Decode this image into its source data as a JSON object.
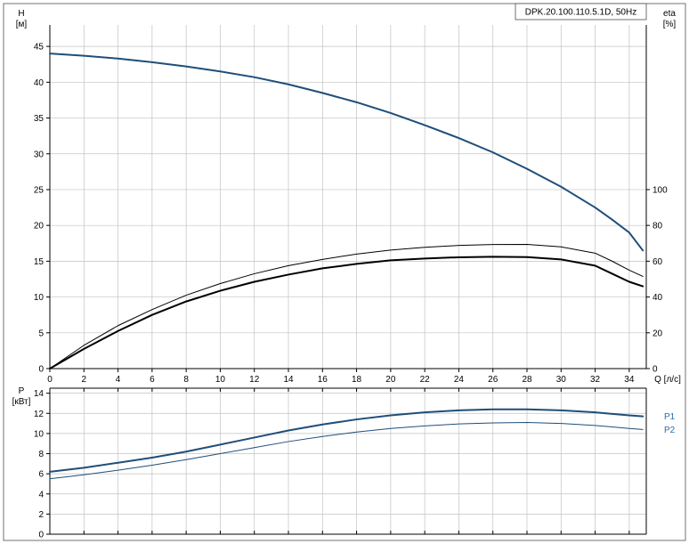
{
  "title_box_text": "DPK.20.100.110.5.1D, 50Hz",
  "title_fontsize": 10,
  "background_color": "#ffffff",
  "border_color": "#4f4f4f",
  "grid_color": "#c2c2c2",
  "axis_color": "#000000",
  "tick_fontsize": 10,
  "x_axis": {
    "label": "Q [л/с]",
    "min": 0,
    "max": 35,
    "ticks": [
      0,
      2,
      4,
      6,
      8,
      10,
      12,
      14,
      16,
      18,
      20,
      22,
      24,
      26,
      28,
      30,
      32,
      34
    ]
  },
  "top_chart": {
    "left_axis": {
      "label_line1": "H",
      "label_line2": "[м]",
      "min": 0,
      "max": 48,
      "ticks": [
        0,
        5,
        10,
        15,
        20,
        25,
        30,
        35,
        40,
        45
      ]
    },
    "right_axis": {
      "label_line1": "eta",
      "label_line2": "[%]",
      "min": 0,
      "max": 192,
      "ticks": [
        0,
        20,
        40,
        60,
        80,
        100
      ]
    },
    "series": [
      {
        "name": "head-curve",
        "axis": "left",
        "color": "#1f4e79",
        "width": 2,
        "points": [
          [
            0,
            44
          ],
          [
            2,
            43.7
          ],
          [
            4,
            43.3
          ],
          [
            6,
            42.8
          ],
          [
            8,
            42.2
          ],
          [
            10,
            41.5
          ],
          [
            12,
            40.7
          ],
          [
            14,
            39.7
          ],
          [
            16,
            38.5
          ],
          [
            18,
            37.2
          ],
          [
            20,
            35.7
          ],
          [
            22,
            34.0
          ],
          [
            24,
            32.2
          ],
          [
            26,
            30.2
          ],
          [
            28,
            27.9
          ],
          [
            30,
            25.4
          ],
          [
            32,
            22.5
          ],
          [
            33,
            20.8
          ],
          [
            34,
            19.0
          ],
          [
            34.8,
            16.5
          ]
        ]
      },
      {
        "name": "eta-upper",
        "axis": "right",
        "color": "#000000",
        "width": 1,
        "points": [
          [
            0,
            0
          ],
          [
            2,
            13
          ],
          [
            4,
            24
          ],
          [
            6,
            33
          ],
          [
            8,
            41
          ],
          [
            10,
            47.5
          ],
          [
            12,
            53
          ],
          [
            14,
            57.5
          ],
          [
            16,
            61
          ],
          [
            18,
            64
          ],
          [
            20,
            66.2
          ],
          [
            22,
            67.8
          ],
          [
            24,
            68.8
          ],
          [
            26,
            69.3
          ],
          [
            28,
            69.4
          ],
          [
            30,
            68.0
          ],
          [
            32,
            64.5
          ],
          [
            33,
            60.0
          ],
          [
            34,
            55.0
          ],
          [
            34.8,
            51.5
          ]
        ]
      },
      {
        "name": "eta-lower",
        "axis": "right",
        "color": "#000000",
        "width": 2,
        "points": [
          [
            0,
            0
          ],
          [
            2,
            11
          ],
          [
            4,
            21
          ],
          [
            6,
            30
          ],
          [
            8,
            37.5
          ],
          [
            10,
            43.5
          ],
          [
            12,
            48.5
          ],
          [
            14,
            52.5
          ],
          [
            16,
            56
          ],
          [
            18,
            58.5
          ],
          [
            20,
            60.5
          ],
          [
            22,
            61.5
          ],
          [
            24,
            62.2
          ],
          [
            26,
            62.5
          ],
          [
            28,
            62.3
          ],
          [
            30,
            61.0
          ],
          [
            32,
            57.5
          ],
          [
            33,
            53.0
          ],
          [
            34,
            48.5
          ],
          [
            34.8,
            46.0
          ]
        ]
      }
    ]
  },
  "bottom_chart": {
    "left_axis": {
      "label_line1": "P",
      "label_line2": "[кВт]",
      "min": 0,
      "max": 14.5,
      "ticks": [
        0,
        2,
        4,
        6,
        8,
        10,
        12,
        14
      ]
    },
    "series": [
      {
        "name": "p1-curve",
        "label": "P1",
        "label_color": "#2e6ca4",
        "color": "#1f4e79",
        "width": 2,
        "points": [
          [
            0,
            6.2
          ],
          [
            2,
            6.6
          ],
          [
            4,
            7.1
          ],
          [
            6,
            7.6
          ],
          [
            8,
            8.2
          ],
          [
            10,
            8.9
          ],
          [
            12,
            9.6
          ],
          [
            14,
            10.3
          ],
          [
            16,
            10.9
          ],
          [
            18,
            11.4
          ],
          [
            20,
            11.8
          ],
          [
            22,
            12.1
          ],
          [
            24,
            12.3
          ],
          [
            26,
            12.4
          ],
          [
            28,
            12.4
          ],
          [
            30,
            12.3
          ],
          [
            32,
            12.1
          ],
          [
            33,
            11.95
          ],
          [
            34,
            11.8
          ],
          [
            34.8,
            11.7
          ]
        ]
      },
      {
        "name": "p2-curve",
        "label": "P2",
        "label_color": "#2e6ca4",
        "color": "#1f4e79",
        "width": 1,
        "points": [
          [
            0,
            5.5
          ],
          [
            2,
            5.9
          ],
          [
            4,
            6.35
          ],
          [
            6,
            6.85
          ],
          [
            8,
            7.4
          ],
          [
            10,
            8.0
          ],
          [
            12,
            8.6
          ],
          [
            14,
            9.2
          ],
          [
            16,
            9.7
          ],
          [
            18,
            10.15
          ],
          [
            20,
            10.5
          ],
          [
            22,
            10.75
          ],
          [
            24,
            10.95
          ],
          [
            26,
            11.05
          ],
          [
            28,
            11.1
          ],
          [
            30,
            11.0
          ],
          [
            32,
            10.8
          ],
          [
            33,
            10.65
          ],
          [
            34,
            10.5
          ],
          [
            34.8,
            10.4
          ]
        ]
      }
    ]
  }
}
